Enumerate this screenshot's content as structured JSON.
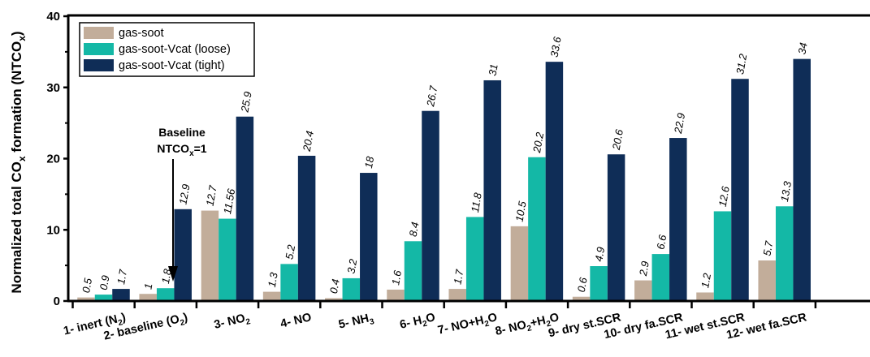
{
  "chart_data": {
    "type": "bar",
    "ylabel": "Normalized total COx formation (NTCOx)",
    "ylim": [
      0,
      40
    ],
    "yticks": [
      0,
      10,
      20,
      30,
      40
    ],
    "grid": false,
    "legend_position": "top-left",
    "categories": [
      "1- inert (N2)",
      "2- baseline (O2)",
      "3- NO2",
      "4- NO",
      "5- NH3",
      "6- H2O",
      "7- NO+H2O",
      "8- NO2+H2O",
      "9- dry st.SCR",
      "10- dry fa.SCR",
      "11- wet st.SCR",
      "12- wet fa.SCR"
    ],
    "series": [
      {
        "name": "gas-soot",
        "color": "#c2ad9a",
        "values": [
          0.5,
          1,
          12.7,
          1.3,
          0.4,
          1.6,
          1.7,
          10.5,
          0.6,
          2.9,
          1.2,
          5.7
        ],
        "labels": [
          "0.5",
          "1",
          "12.7",
          "1.3",
          "0.4",
          "1.6",
          "1.7",
          "10.5",
          "0.6",
          "2.9",
          "1.2",
          "5.7"
        ]
      },
      {
        "name": "gas-soot-Vcat (loose)",
        "color": "#14b8a6",
        "values": [
          0.9,
          1.8,
          11.56,
          5.2,
          3.2,
          8.4,
          11.8,
          20.2,
          4.9,
          6.6,
          12.6,
          13.3
        ],
        "labels": [
          "0.9",
          "1.8",
          "11.56",
          "5.2",
          "3.2",
          "8.4",
          "11.8",
          "20.2",
          "4.9",
          "6.6",
          "12.6",
          "13.3"
        ]
      },
      {
        "name": "gas-soot-Vcat (tight)",
        "color": "#0f2d57",
        "values": [
          1.7,
          12.9,
          25.9,
          20.4,
          18,
          26.7,
          31,
          33.6,
          20.6,
          22.9,
          31.2,
          34
        ],
        "labels": [
          "1.7",
          "12.9",
          "25.9",
          "20.4",
          "18",
          "26.7",
          "31",
          "33.6",
          "20.6",
          "22.9",
          "31.2",
          "34"
        ]
      }
    ],
    "annotation": {
      "line1": "Baseline",
      "line2": "NTCOx=1"
    }
  }
}
